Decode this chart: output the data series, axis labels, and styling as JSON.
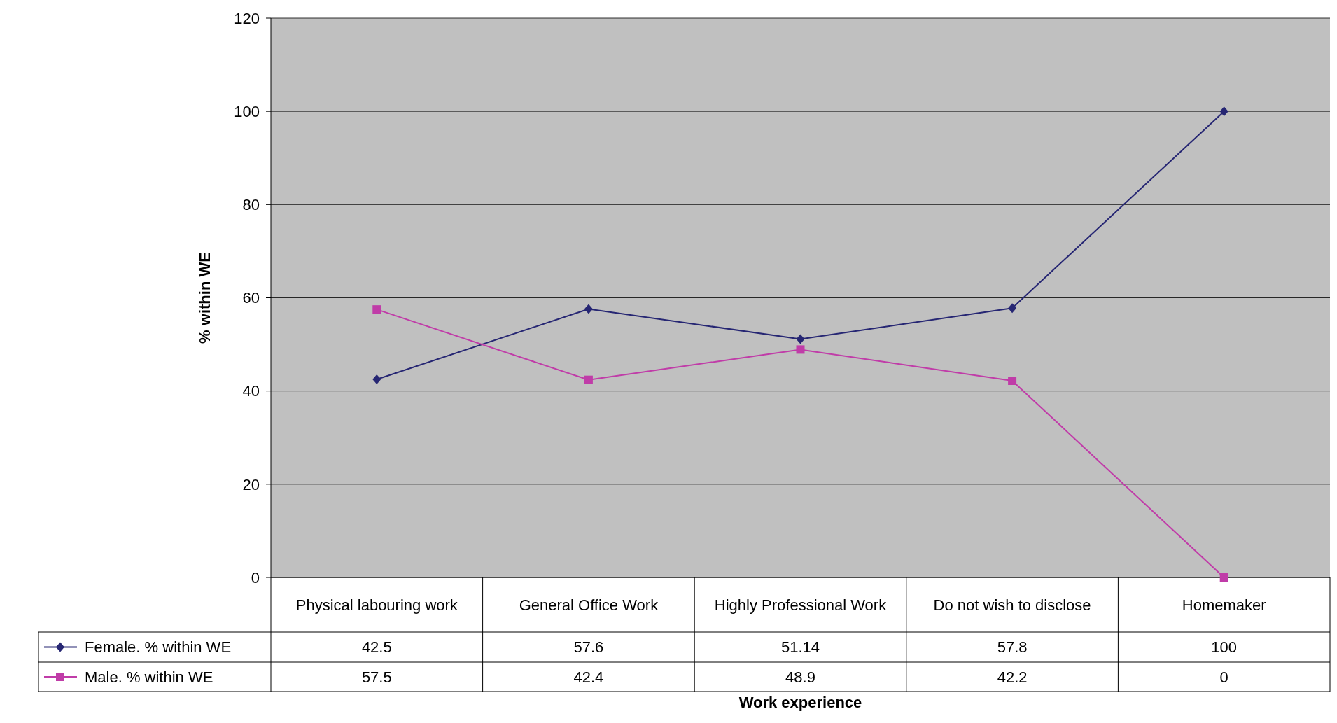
{
  "chart_data": {
    "type": "line",
    "annotations": [
      "Work experience"
    ],
    "ylabel": "% within WE",
    "categories": [
      "Physical labouring work",
      "General Office Work",
      "Highly Professional Work",
      "Do not wish to disclose",
      "Homemaker"
    ],
    "series": [
      {
        "name": "Female. % within WE",
        "color": "#262673",
        "marker": "diamond",
        "values": [
          42.5,
          57.6,
          51.14,
          57.8,
          100
        ]
      },
      {
        "name": "Male. % within WE",
        "color": "#c03ca8",
        "marker": "square",
        "values": [
          57.5,
          42.4,
          48.9,
          42.2,
          0
        ]
      }
    ],
    "ylim": [
      0,
      120
    ],
    "yticks": [
      0,
      20,
      40,
      60,
      80,
      100,
      120
    ],
    "grid": "y",
    "legend": "bottom",
    "data_labels": true,
    "line_style": "solid"
  }
}
